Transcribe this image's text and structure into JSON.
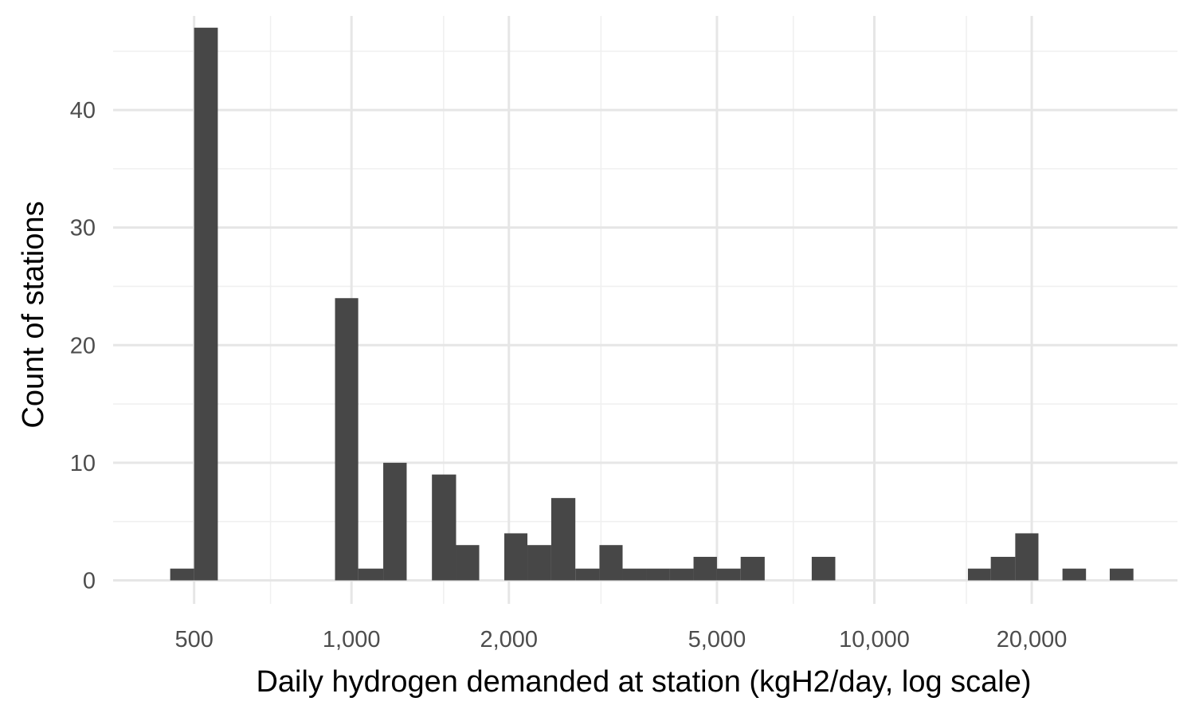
{
  "chart_data": {
    "type": "histogram",
    "title": "",
    "xlabel": "Daily hydrogen demanded at station (kgH2/day, log scale)",
    "ylabel": "Count of stations",
    "x_scale": "log10",
    "xlim": [
      350,
      38000
    ],
    "ylim": [
      -2,
      48
    ],
    "grid": true,
    "x_ticks": [
      {
        "value": 500,
        "label": "500"
      },
      {
        "value": 1000,
        "label": "1,000"
      },
      {
        "value": 2000,
        "label": "2,000"
      },
      {
        "value": 5000,
        "label": "5,000"
      },
      {
        "value": 10000,
        "label": "10,000"
      },
      {
        "value": 20000,
        "label": "20,000"
      }
    ],
    "x_minor": [
      700,
      1500,
      3000,
      7000,
      15000
    ],
    "y_ticks": [
      {
        "value": 0,
        "label": "0"
      },
      {
        "value": 10,
        "label": "10"
      },
      {
        "value": 20,
        "label": "20"
      },
      {
        "value": 30,
        "label": "30"
      },
      {
        "value": 40,
        "label": "40"
      }
    ],
    "y_minor": [
      5,
      15,
      25,
      35,
      45
    ],
    "bins": [
      {
        "x0": 450,
        "x1": 500,
        "count": 1
      },
      {
        "x0": 500,
        "x1": 555,
        "count": 47
      },
      {
        "x0": 930,
        "x1": 1030,
        "count": 24
      },
      {
        "x0": 1030,
        "x1": 1150,
        "count": 1
      },
      {
        "x0": 1150,
        "x1": 1275,
        "count": 10
      },
      {
        "x0": 1425,
        "x1": 1585,
        "count": 9
      },
      {
        "x0": 1585,
        "x1": 1755,
        "count": 3
      },
      {
        "x0": 1960,
        "x1": 2170,
        "count": 4
      },
      {
        "x0": 2170,
        "x1": 2410,
        "count": 3
      },
      {
        "x0": 2410,
        "x1": 2680,
        "count": 7
      },
      {
        "x0": 2680,
        "x1": 2980,
        "count": 1
      },
      {
        "x0": 2980,
        "x1": 3300,
        "count": 3
      },
      {
        "x0": 3300,
        "x1": 3660,
        "count": 1
      },
      {
        "x0": 3660,
        "x1": 4060,
        "count": 1
      },
      {
        "x0": 4060,
        "x1": 4510,
        "count": 1
      },
      {
        "x0": 4510,
        "x1": 5000,
        "count": 2
      },
      {
        "x0": 5000,
        "x1": 5550,
        "count": 1
      },
      {
        "x0": 5550,
        "x1": 6170,
        "count": 2
      },
      {
        "x0": 7590,
        "x1": 8420,
        "count": 2
      },
      {
        "x0": 15100,
        "x1": 16700,
        "count": 1
      },
      {
        "x0": 16700,
        "x1": 18600,
        "count": 2
      },
      {
        "x0": 18600,
        "x1": 20600,
        "count": 4
      },
      {
        "x0": 22900,
        "x1": 25400,
        "count": 1
      },
      {
        "x0": 28200,
        "x1": 31300,
        "count": 1
      }
    ]
  }
}
